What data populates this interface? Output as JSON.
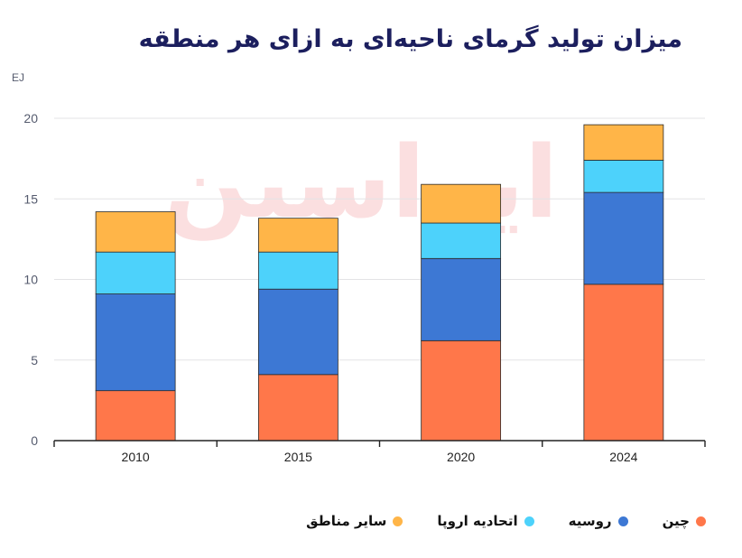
{
  "chart_data": {
    "type": "bar",
    "stacked": true,
    "title": "میزان تولید گرمای ناحیه‌ای به ازای هر منطقه",
    "unit_label": "EJ",
    "categories": [
      "2010",
      "2015",
      "2020",
      "2024"
    ],
    "ylim": [
      0,
      20
    ],
    "yticks": [
      0,
      5,
      10,
      15,
      20
    ],
    "grid": true,
    "legend_position": "bottom",
    "series": [
      {
        "name": "چین",
        "color": "#ff774a",
        "values": [
          3.1,
          4.1,
          6.2,
          9.7
        ]
      },
      {
        "name": "روسیه",
        "color": "#3d78d4",
        "values": [
          6.0,
          5.3,
          5.1,
          5.7
        ]
      },
      {
        "name": "اتحادیه اروپا",
        "color": "#4dd2fb",
        "values": [
          2.6,
          2.3,
          2.2,
          2.0
        ]
      },
      {
        "name": "سایر مناطق",
        "color": "#ffb548",
        "values": [
          2.5,
          2.1,
          2.4,
          2.2
        ]
      }
    ]
  }
}
